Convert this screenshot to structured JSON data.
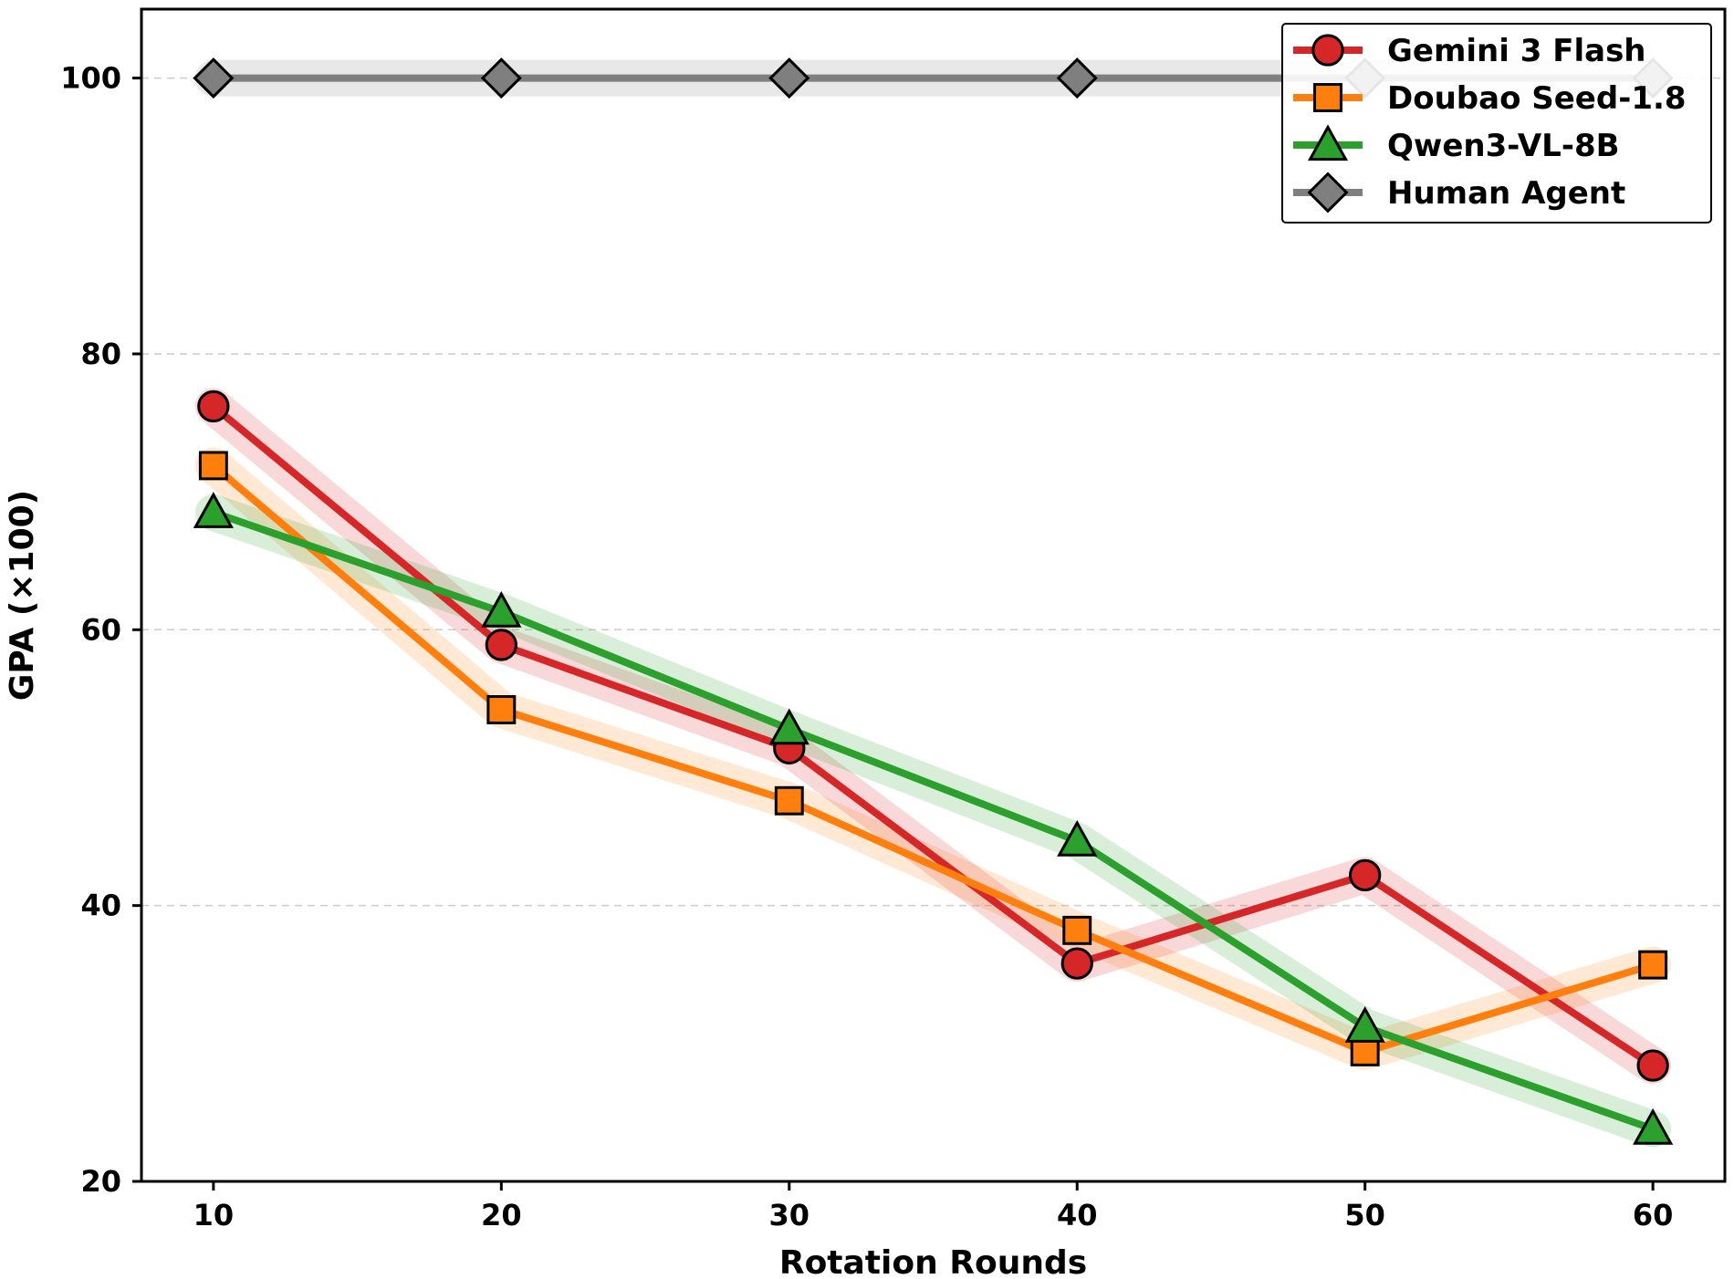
{
  "chart_data": {
    "type": "line",
    "title": "",
    "xlabel": "Rotation Rounds",
    "ylabel": "GPA (×100)",
    "x": [
      10,
      20,
      30,
      40,
      50,
      60
    ],
    "xlim": [
      7.5,
      62.5
    ],
    "ylim": [
      20,
      105
    ],
    "xticks": [
      "10",
      "20",
      "30",
      "40",
      "50",
      "60"
    ],
    "yticks": [
      "20",
      "40",
      "60",
      "80",
      "100"
    ],
    "grid": "horizontal dashed",
    "legend_position": "top-right",
    "series": [
      {
        "name": "Gemini 3 Flash",
        "color": "#d62728",
        "marker": "circle",
        "values": [
          76.2,
          58.9,
          51.4,
          35.8,
          42.2,
          28.4
        ]
      },
      {
        "name": "Doubao Seed-1.8",
        "color": "#ff7f0e",
        "marker": "square",
        "values": [
          71.9,
          54.2,
          47.6,
          38.2,
          29.4,
          35.7
        ]
      },
      {
        "name": "Qwen3-VL-8B",
        "color": "#2ca02c",
        "marker": "triangle",
        "values": [
          68.5,
          61.3,
          52.8,
          44.7,
          31.2,
          23.8
        ]
      },
      {
        "name": "Human Agent",
        "color": "#7f7f7f",
        "marker": "diamond",
        "values": [
          100,
          100,
          100,
          100,
          100,
          100
        ]
      }
    ]
  }
}
